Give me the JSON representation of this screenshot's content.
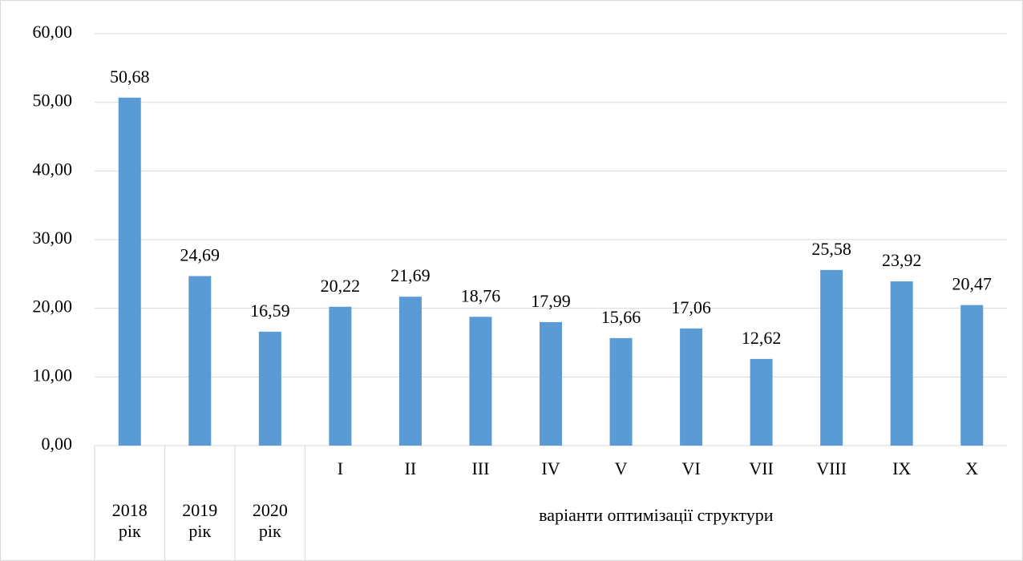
{
  "chart_data": {
    "type": "bar",
    "categories": [
      "2018 рік",
      "2019 рік",
      "2020 рік",
      "I",
      "II",
      "III",
      "IV",
      "V",
      "VI",
      "VII",
      "VIII",
      "IX",
      "X"
    ],
    "category_groups": [
      {
        "label": "варіанти оптимізації структури",
        "members": [
          "I",
          "II",
          "III",
          "IV",
          "V",
          "VI",
          "VII",
          "VIII",
          "IX",
          "X"
        ]
      }
    ],
    "values": [
      50.68,
      24.69,
      16.59,
      20.22,
      21.69,
      18.76,
      17.99,
      15.66,
      17.06,
      12.62,
      25.58,
      23.92,
      20.47
    ],
    "value_labels": [
      "50,68",
      "24,69",
      "16,59",
      "20,22",
      "21,69",
      "18,76",
      "17,99",
      "15,66",
      "17,06",
      "12,62",
      "25,58",
      "23,92",
      "20,47"
    ],
    "color": "#5b9bd5",
    "ylim": [
      0,
      60
    ],
    "yticks": [
      {
        "value": 0,
        "label": "0,00"
      },
      {
        "value": 10,
        "label": "10,00"
      },
      {
        "value": 20,
        "label": "20,00"
      },
      {
        "value": 30,
        "label": "30,00"
      },
      {
        "value": 40,
        "label": "40,00"
      },
      {
        "value": 50,
        "label": "50,00"
      },
      {
        "value": 60,
        "label": "60,00"
      }
    ],
    "grid": true
  }
}
